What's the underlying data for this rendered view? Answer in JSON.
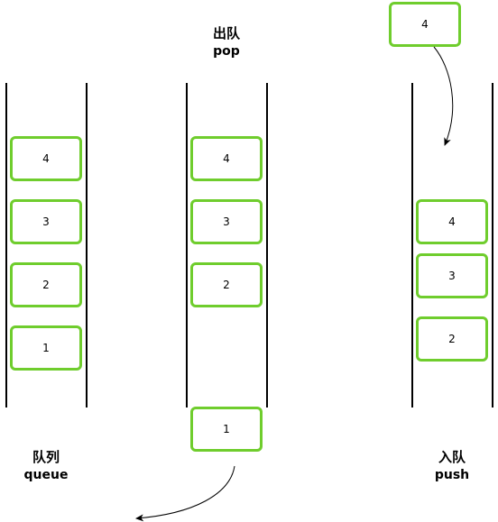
{
  "captions": {
    "queue": {
      "zh": "队列",
      "en": "queue"
    },
    "pop": {
      "zh": "出队",
      "en": "pop"
    },
    "push": {
      "zh": "入队",
      "en": "push"
    }
  },
  "queue_column": {
    "items": [
      "4",
      "3",
      "2",
      "1"
    ]
  },
  "pop_column": {
    "items": [
      "4",
      "3",
      "2"
    ],
    "removed": "1"
  },
  "push_column": {
    "incoming": "4",
    "items": [
      "4",
      "3",
      "2"
    ]
  },
  "colors": {
    "box_border": "#6fcd2d",
    "rail": "#000000"
  }
}
